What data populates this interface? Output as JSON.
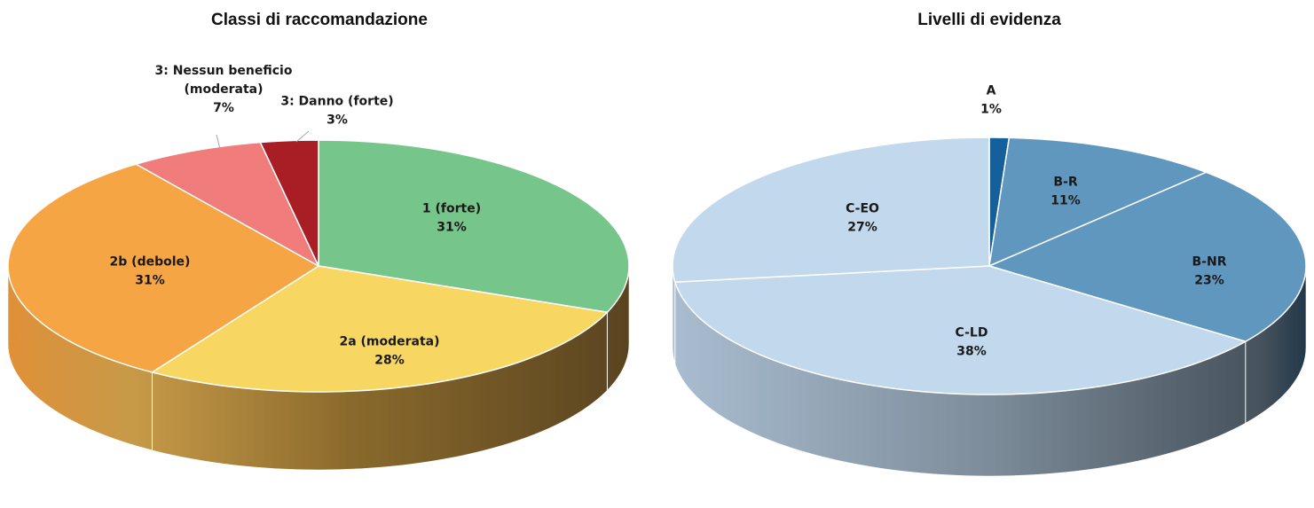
{
  "chart_data": [
    {
      "type": "pie",
      "title": "Classi di raccomandazione",
      "slices": [
        {
          "label": "1 (forte)",
          "value": 31,
          "value_label": "31%",
          "color": "#76c58b"
        },
        {
          "label": "2a (moderata)",
          "value": 28,
          "value_label": "28%",
          "color": "#f8d662"
        },
        {
          "label": "2b (debole)",
          "value": 31,
          "value_label": "31%",
          "color": "#f5a544"
        },
        {
          "label": "3: Nessun beneficio (moderata)",
          "label_lines": [
            "3: Nessun beneficio",
            "(moderata)"
          ],
          "value": 7,
          "value_label": "7%",
          "color": "#f07c7c"
        },
        {
          "label": "3: Danno (forte)",
          "value": 3,
          "value_label": "3%",
          "color": "#a81e24"
        }
      ]
    },
    {
      "type": "pie",
      "title": "Livelli di evidenza",
      "slices": [
        {
          "label": "A",
          "value": 1,
          "value_label": "1%",
          "color": "#15609a"
        },
        {
          "label": "B-R",
          "value": 11,
          "value_label": "11%",
          "color": "#6097be"
        },
        {
          "label": "B-NR",
          "value": 23,
          "value_label": "23%",
          "color": "#6097be"
        },
        {
          "label": "C-LD",
          "value": 38,
          "value_label": "38%",
          "color": "#c2d8ec"
        },
        {
          "label": "C-EO",
          "value": 27,
          "value_label": "27%",
          "color": "#c2d8ec"
        }
      ]
    }
  ]
}
